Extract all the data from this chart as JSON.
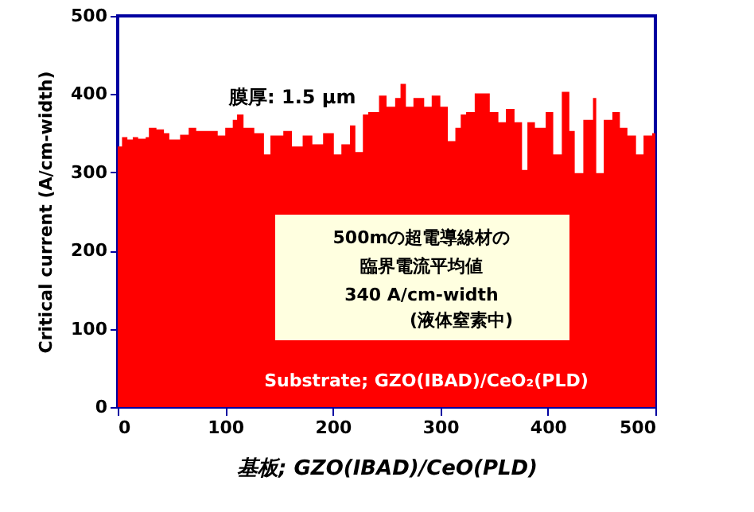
{
  "chart_data": {
    "type": "area",
    "xlabel": "基板; GZO(IBAD)/CeO(PLD)",
    "ylabel": "Critical current (A/cm-width)",
    "x": [
      0,
      2,
      4,
      9,
      14,
      19,
      26,
      29,
      36,
      43,
      48,
      58,
      66,
      73,
      83,
      93,
      100,
      107,
      111,
      117,
      127,
      136,
      142,
      154,
      162,
      172,
      181,
      191,
      201,
      208,
      216,
      221,
      228,
      233,
      243,
      250,
      258,
      263,
      268,
      275,
      285,
      292,
      300,
      307,
      314,
      319,
      324,
      332,
      339,
      346,
      354,
      361,
      369,
      376,
      381,
      388,
      398,
      405,
      413,
      420,
      425,
      433,
      442,
      445,
      452,
      460,
      467,
      474,
      482,
      489,
      497,
      500
    ],
    "series": [
      {
        "color": "#ff0000",
        "values": [
          333,
          333,
          345,
          342,
          345,
          343,
          345,
          357,
          355,
          350,
          342,
          348,
          357,
          353,
          353,
          347,
          357,
          367,
          374,
          357,
          350,
          323,
          347,
          353,
          333,
          347,
          336,
          350,
          323,
          336,
          360,
          326,
          374,
          377,
          398,
          384,
          395,
          413,
          384,
          395,
          384,
          398,
          384,
          340,
          357,
          374,
          377,
          401,
          401,
          377,
          364,
          381,
          364,
          303,
          364,
          357,
          377,
          323,
          403,
          353,
          299,
          367,
          395,
          299,
          367,
          377,
          357,
          347,
          323,
          347,
          350,
          329
        ]
      }
    ],
    "xlim": [
      0,
      500
    ],
    "ylim": [
      0,
      500
    ],
    "xticks": [
      0,
      100,
      200,
      300,
      400,
      500
    ],
    "yticks": [
      0,
      100,
      200,
      300,
      400,
      500
    ],
    "grid": false,
    "annotations": [
      "膜厚: 1.5 μm",
      "500mの超電導線材の",
      "臨界電流平均値",
      "340 A/cm-width",
      "(液体窒素中)",
      "Substrate; GZO(IBAD)/CeO₂(PLD)"
    ]
  }
}
